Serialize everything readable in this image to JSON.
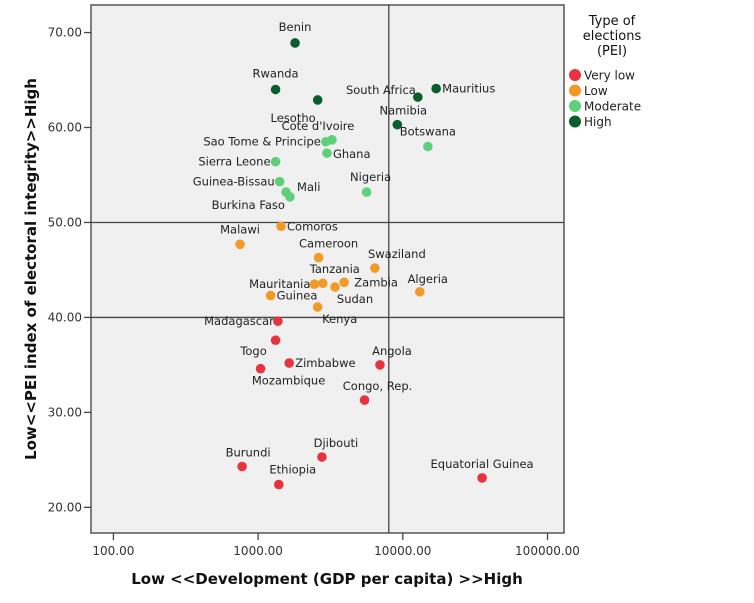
{
  "chart_data": {
    "type": "scatter",
    "title": "",
    "xlabel": "Low <<Development (GDP per capita) >>High",
    "ylabel": "Low<<PEI index of electoral integrity>>High",
    "xscale": "log",
    "xlim": [
      70,
      130000
    ],
    "ylim": [
      17.3,
      72.9
    ],
    "xticks": [
      100,
      1000,
      10000,
      100000
    ],
    "xtick_labels": [
      "100.00",
      "1000.00",
      "10000.00",
      "100000.00"
    ],
    "yticks": [
      20,
      30,
      40,
      50,
      60,
      70
    ],
    "ytick_labels": [
      "20.00",
      "30.00",
      "40.00",
      "50.00",
      "60.00",
      "70.00"
    ],
    "grid": false,
    "reference_lines": {
      "x": [
        8000
      ],
      "y": [
        50,
        40
      ]
    },
    "legend": {
      "title": "Type of elections (PEI)",
      "title_lines": [
        "Type of",
        "elections",
        "(PEI)"
      ],
      "placement": "right-top",
      "entries": [
        {
          "name": "Very low",
          "color": "#e8323f"
        },
        {
          "name": "Low",
          "color": "#f39a26"
        },
        {
          "name": "Moderate",
          "color": "#5fd07a"
        },
        {
          "name": "High",
          "color": "#0b5e2b"
        }
      ]
    },
    "series": [
      {
        "name": "High",
        "color": "#0b5e2b",
        "points": [
          {
            "label": "Benin",
            "x": 1800,
            "y": 68.9
          },
          {
            "label": "Rwanda",
            "x": 1320,
            "y": 64.0
          },
          {
            "label": "Lesotho",
            "x": 2580,
            "y": 62.9
          },
          {
            "label": "South Africa",
            "x": 12700,
            "y": 63.2
          },
          {
            "label": "Mauritius",
            "x": 17000,
            "y": 64.1
          },
          {
            "label": "Namibia",
            "x": 9160,
            "y": 60.3
          }
        ]
      },
      {
        "name": "Moderate",
        "color": "#5fd07a",
        "points": [
          {
            "label": "Cote d'Ivoire",
            "x": 3240,
            "y": 58.7
          },
          {
            "label": "Sao Tome & Principe",
            "x": 2940,
            "y": 58.5
          },
          {
            "label": "Ghana",
            "x": 2990,
            "y": 57.3
          },
          {
            "label": "Botswana",
            "x": 14900,
            "y": 58.0
          },
          {
            "label": "Sierra Leone",
            "x": 1320,
            "y": 56.4
          },
          {
            "label": "Guinea-Bissau",
            "x": 1410,
            "y": 54.3
          },
          {
            "label": "Mali",
            "x": 1560,
            "y": 53.2
          },
          {
            "label": "Burkina Faso",
            "x": 1660,
            "y": 52.7
          },
          {
            "label": "Nigeria",
            "x": 5620,
            "y": 53.2
          }
        ]
      },
      {
        "name": "Low",
        "color": "#f39a26",
        "points": [
          {
            "label": "Comoros",
            "x": 1440,
            "y": 49.6
          },
          {
            "label": "Malawi",
            "x": 750,
            "y": 47.7
          },
          {
            "label": "Cameroon",
            "x": 2620,
            "y": 46.3
          },
          {
            "label": "Swaziland",
            "x": 6410,
            "y": 45.2
          },
          {
            "label": "Mauritania",
            "x": 2450,
            "y": 43.5
          },
          {
            "label": "Tanzania",
            "x": 2800,
            "y": 43.6
          },
          {
            "label": "Sudan",
            "x": 3400,
            "y": 43.2
          },
          {
            "label": "Zambia",
            "x": 3930,
            "y": 43.7
          },
          {
            "label": "Guinea",
            "x": 1220,
            "y": 42.3
          },
          {
            "label": "Kenya",
            "x": 2580,
            "y": 41.1
          },
          {
            "label": "Algeria",
            "x": 13100,
            "y": 42.7
          }
        ]
      },
      {
        "name": "Very low",
        "color": "#e8323f",
        "points": [
          {
            "label": "Madagascar",
            "x": 1370,
            "y": 39.6
          },
          {
            "label": "Togo",
            "x": 1320,
            "y": 37.6
          },
          {
            "label": "Mozambique",
            "x": 1040,
            "y": 34.6
          },
          {
            "label": "Zimbabwe",
            "x": 1640,
            "y": 35.2
          },
          {
            "label": "Angola",
            "x": 6950,
            "y": 35.0
          },
          {
            "label": "Congo, Rep.",
            "x": 5440,
            "y": 31.3
          },
          {
            "label": "Burundi",
            "x": 775,
            "y": 24.3
          },
          {
            "label": "Djibouti",
            "x": 2760,
            "y": 25.3
          },
          {
            "label": "Ethiopia",
            "x": 1390,
            "y": 22.4
          },
          {
            "label": "Equatorial Guinea",
            "x": 35300,
            "y": 23.1
          }
        ]
      }
    ]
  }
}
